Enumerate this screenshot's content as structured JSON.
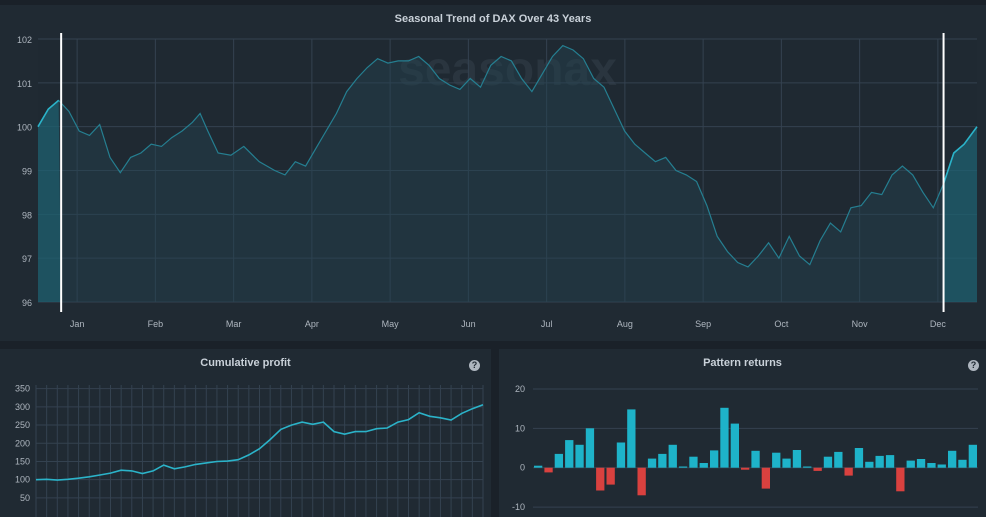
{
  "main_title": "Seasonal Trend of DAX Over 43 Years",
  "watermark": "seasonax",
  "cum_title": "Cumulative profit",
  "pattern_title": "Pattern returns",
  "help_glyph": "?",
  "colors": {
    "line": "#2bb3c9",
    "positive": "#1eb3c9",
    "negative": "#d9413f",
    "grid": "#344250"
  },
  "chart_data": [
    {
      "type": "line",
      "title": "Seasonal Trend of DAX Over 43 Years",
      "months": [
        "Jan",
        "Feb",
        "Mar",
        "Apr",
        "May",
        "Jun",
        "Jul",
        "Aug",
        "Sep",
        "Oct",
        "Nov",
        "Dec"
      ],
      "yticks": [
        96,
        97,
        98,
        99,
        100,
        101,
        102
      ],
      "ylim": [
        96,
        102
      ],
      "x_unit": "day of year",
      "xlim": [
        0,
        365
      ],
      "highlight": [
        9,
        352
      ],
      "points": [
        [
          0,
          100.0
        ],
        [
          4,
          100.4
        ],
        [
          8,
          100.6
        ],
        [
          12,
          100.35
        ],
        [
          16,
          99.9
        ],
        [
          20,
          99.8
        ],
        [
          24,
          100.05
        ],
        [
          28,
          99.3
        ],
        [
          32,
          98.95
        ],
        [
          36,
          99.3
        ],
        [
          40,
          99.4
        ],
        [
          44,
          99.6
        ],
        [
          48,
          99.55
        ],
        [
          52,
          99.75
        ],
        [
          56,
          99.9
        ],
        [
          60,
          100.1
        ],
        [
          63,
          100.3
        ],
        [
          66,
          99.9
        ],
        [
          70,
          99.4
        ],
        [
          75,
          99.35
        ],
        [
          80,
          99.55
        ],
        [
          86,
          99.2
        ],
        [
          92,
          99.0
        ],
        [
          96,
          98.9
        ],
        [
          100,
          99.2
        ],
        [
          104,
          99.1
        ],
        [
          108,
          99.5
        ],
        [
          112,
          99.9
        ],
        [
          116,
          100.3
        ],
        [
          120,
          100.8
        ],
        [
          124,
          101.1
        ],
        [
          128,
          101.35
        ],
        [
          132,
          101.55
        ],
        [
          136,
          101.45
        ],
        [
          140,
          101.5
        ],
        [
          144,
          101.5
        ],
        [
          148,
          101.6
        ],
        [
          152,
          101.4
        ],
        [
          156,
          101.1
        ],
        [
          160,
          100.95
        ],
        [
          164,
          100.85
        ],
        [
          168,
          101.1
        ],
        [
          172,
          100.9
        ],
        [
          176,
          101.4
        ],
        [
          180,
          101.6
        ],
        [
          184,
          101.5
        ],
        [
          188,
          101.1
        ],
        [
          192,
          100.8
        ],
        [
          196,
          101.2
        ],
        [
          200,
          101.6
        ],
        [
          204,
          101.85
        ],
        [
          208,
          101.75
        ],
        [
          212,
          101.55
        ],
        [
          216,
          101.1
        ],
        [
          220,
          100.9
        ],
        [
          224,
          100.4
        ],
        [
          228,
          99.9
        ],
        [
          232,
          99.6
        ],
        [
          236,
          99.4
        ],
        [
          240,
          99.2
        ],
        [
          244,
          99.3
        ],
        [
          248,
          99.0
        ],
        [
          252,
          98.9
        ],
        [
          256,
          98.75
        ],
        [
          260,
          98.2
        ],
        [
          264,
          97.5
        ],
        [
          268,
          97.15
        ],
        [
          272,
          96.9
        ],
        [
          276,
          96.8
        ],
        [
          280,
          97.05
        ],
        [
          284,
          97.35
        ],
        [
          288,
          97.0
        ],
        [
          292,
          97.5
        ],
        [
          296,
          97.05
        ],
        [
          300,
          96.85
        ],
        [
          304,
          97.4
        ],
        [
          308,
          97.8
        ],
        [
          312,
          97.6
        ],
        [
          316,
          98.15
        ],
        [
          320,
          98.2
        ],
        [
          324,
          98.5
        ],
        [
          328,
          98.45
        ],
        [
          332,
          98.9
        ],
        [
          336,
          99.1
        ],
        [
          340,
          98.9
        ],
        [
          344,
          98.5
        ],
        [
          348,
          98.15
        ],
        [
          352,
          98.7
        ],
        [
          356,
          99.4
        ],
        [
          360,
          99.6
        ],
        [
          365,
          100.0
        ]
      ]
    },
    {
      "type": "line",
      "title": "Cumulative profit",
      "yticks": [
        50,
        100,
        150,
        200,
        250,
        300,
        350
      ],
      "ylim": [
        25,
        360
      ],
      "x": [
        0,
        1,
        2,
        3,
        4,
        5,
        6,
        7,
        8,
        9,
        10,
        11,
        12,
        13,
        14,
        15,
        16,
        17,
        18,
        19,
        20,
        21,
        22,
        23,
        24,
        25,
        26,
        27,
        28,
        29,
        30,
        31,
        32,
        33,
        34,
        35,
        36,
        37,
        38,
        39,
        40,
        41,
        42
      ],
      "values": [
        100,
        101,
        99,
        101,
        104,
        108,
        113,
        118,
        126,
        124,
        117,
        124,
        140,
        130,
        135,
        142,
        146,
        150,
        151,
        155,
        168,
        185,
        210,
        238,
        250,
        258,
        252,
        258,
        232,
        225,
        232,
        232,
        240,
        242,
        258,
        265,
        284,
        274,
        270,
        264,
        282,
        295,
        306
      ]
    },
    {
      "type": "bar",
      "title": "Pattern returns",
      "yticks": [
        -10,
        0,
        10,
        20
      ],
      "ylim": [
        -11,
        21
      ],
      "values": [
        0.5,
        -1.2,
        3.5,
        7.0,
        5.8,
        10.0,
        -5.8,
        -4.3,
        6.4,
        14.8,
        -7.0,
        2.3,
        3.5,
        5.8,
        0.3,
        2.8,
        1.2,
        4.4,
        15.2,
        11.2,
        -0.5,
        4.3,
        -5.3,
        3.8,
        2.3,
        4.5,
        0.3,
        -0.8,
        2.8,
        4.0,
        -2.0,
        5.0,
        1.5,
        3.0,
        3.2,
        -6.0,
        1.8,
        2.2,
        1.2,
        0.8,
        4.3,
        2.0,
        5.8
      ]
    }
  ]
}
